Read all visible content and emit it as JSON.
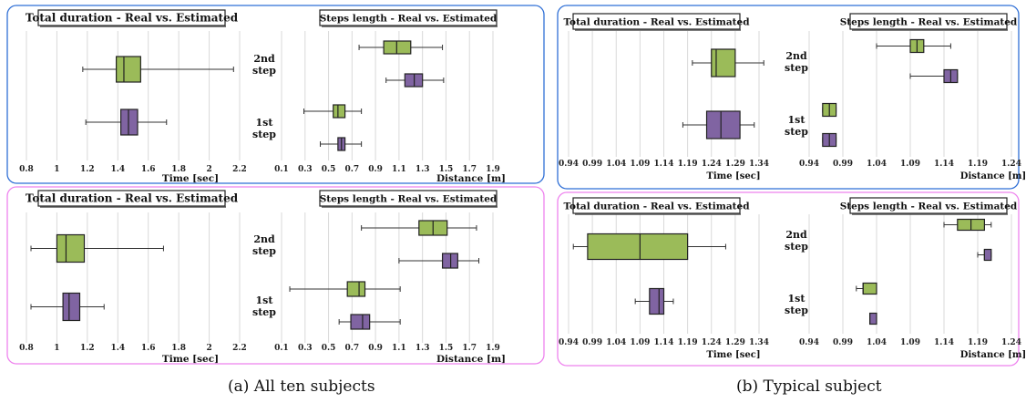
{
  "figure": {
    "captions": [
      "(a) All ten subjects",
      "(b) Typical subject"
    ]
  },
  "colors": {
    "real": "#9bbb59",
    "estimated": "#8064a2",
    "frame_top": "#2f6fd6",
    "frame_bottom": "#ee82ee",
    "grid": "#d9d9d9"
  },
  "chart_data": [
    {
      "type": "boxplot",
      "figure_group": "(a) All ten subjects",
      "frame": "top",
      "title": "Total duration - Real vs. Estimated",
      "xlabel": "Time [sec]",
      "x_ticks": [
        "0.8",
        "1",
        "1.2",
        "1.4",
        "1.6",
        "1.8",
        "2",
        "2.2"
      ],
      "xlim": [
        0.8,
        2.2
      ],
      "groups": [
        {
          "label": "",
          "boxes": [
            {
              "series": "real",
              "min": 1.17,
              "q1": 1.39,
              "median": 1.44,
              "q3": 1.55,
              "max": 2.16
            },
            {
              "series": "estimated",
              "min": 1.19,
              "q1": 1.42,
              "median": 1.47,
              "q3": 1.53,
              "max": 1.72
            }
          ]
        }
      ]
    },
    {
      "type": "boxplot",
      "figure_group": "(a) All ten subjects",
      "frame": "top",
      "title": "Steps length - Real vs. Estimated",
      "xlabel": "Distance [m]",
      "x_ticks": [
        "0.1",
        "0.3",
        "0.5",
        "0.7",
        "0.9",
        "1.1",
        "1.3",
        "1.5",
        "1.7",
        "1.9"
      ],
      "xlim": [
        0.1,
        1.9
      ],
      "groups": [
        {
          "label": "2nd step",
          "boxes": [
            {
              "series": "real",
              "min": 0.76,
              "q1": 0.97,
              "median": 1.08,
              "q3": 1.2,
              "max": 1.47
            },
            {
              "series": "estimated",
              "min": 0.99,
              "q1": 1.15,
              "median": 1.23,
              "q3": 1.3,
              "max": 1.48
            }
          ]
        },
        {
          "label": "1st step",
          "boxes": [
            {
              "series": "real",
              "min": 0.29,
              "q1": 0.54,
              "median": 0.58,
              "q3": 0.64,
              "max": 0.78
            },
            {
              "series": "estimated",
              "min": 0.43,
              "q1": 0.58,
              "median": 0.61,
              "q3": 0.64,
              "max": 0.78
            }
          ]
        }
      ]
    },
    {
      "type": "boxplot",
      "figure_group": "(a) All ten subjects",
      "frame": "bottom",
      "title": "Total duration - Real vs. Estimated",
      "xlabel": "Time [sec]",
      "x_ticks": [
        "0.8",
        "1",
        "1.2",
        "1.4",
        "1.6",
        "1.8",
        "2",
        "2.2"
      ],
      "xlim": [
        0.8,
        2.2
      ],
      "groups": [
        {
          "label": "",
          "boxes": [
            {
              "series": "real",
              "min": 0.83,
              "q1": 1.0,
              "median": 1.06,
              "q3": 1.18,
              "max": 1.7
            },
            {
              "series": "estimated",
              "min": 0.83,
              "q1": 1.04,
              "median": 1.08,
              "q3": 1.15,
              "max": 1.31
            }
          ]
        }
      ]
    },
    {
      "type": "boxplot",
      "figure_group": "(a) All ten subjects",
      "frame": "bottom",
      "title": "Steps length - Real vs. Estimated",
      "xlabel": "Distance [m]",
      "x_ticks": [
        "0.1",
        "0.3",
        "0.5",
        "0.7",
        "0.9",
        "1.1",
        "1.3",
        "1.5",
        "1.7",
        "1.9"
      ],
      "xlim": [
        0.1,
        1.9
      ],
      "groups": [
        {
          "label": "2nd step",
          "boxes": [
            {
              "series": "real",
              "min": 0.78,
              "q1": 1.27,
              "median": 1.39,
              "q3": 1.51,
              "max": 1.76
            },
            {
              "series": "estimated",
              "min": 1.1,
              "q1": 1.47,
              "median": 1.54,
              "q3": 1.6,
              "max": 1.78
            }
          ]
        },
        {
          "label": "1st step",
          "boxes": [
            {
              "series": "real",
              "min": 0.17,
              "q1": 0.66,
              "median": 0.76,
              "q3": 0.81,
              "max": 1.11
            },
            {
              "series": "estimated",
              "min": 0.59,
              "q1": 0.69,
              "median": 0.79,
              "q3": 0.85,
              "max": 1.11
            }
          ]
        }
      ]
    },
    {
      "type": "boxplot",
      "figure_group": "(b) Typical subject",
      "frame": "top",
      "title": "Total duration - Real vs. Estimated",
      "xlabel": "Time [sec]",
      "x_ticks": [
        "0.94",
        "0.99",
        "1.04",
        "1.09",
        "1.14",
        "1.19",
        "1.24",
        "1.29",
        "1.34"
      ],
      "xlim": [
        0.94,
        1.34
      ],
      "groups": [
        {
          "label": "",
          "boxes": [
            {
              "series": "real",
              "min": 1.2,
              "q1": 1.24,
              "median": 1.25,
              "q3": 1.29,
              "max": 1.35
            },
            {
              "series": "estimated",
              "min": 1.18,
              "q1": 1.23,
              "median": 1.26,
              "q3": 1.3,
              "max": 1.33
            }
          ]
        }
      ]
    },
    {
      "type": "boxplot",
      "figure_group": "(b) Typical subject",
      "frame": "top",
      "title": "Steps length - Real vs. Estimated",
      "xlabel": "Distance [m]",
      "x_ticks": [
        "0.94",
        "0.99",
        "1.04",
        "1.09",
        "1.14",
        "1.19",
        "1.24"
      ],
      "xlim": [
        0.94,
        1.24
      ],
      "groups": [
        {
          "label": "2nd step",
          "boxes": [
            {
              "series": "real",
              "min": 1.04,
              "q1": 1.09,
              "median": 1.1,
              "q3": 1.11,
              "max": 1.15
            },
            {
              "series": "estimated",
              "min": 1.09,
              "q1": 1.14,
              "median": 1.15,
              "q3": 1.16,
              "max": 1.16
            }
          ]
        },
        {
          "label": "1st step",
          "boxes": [
            {
              "series": "real",
              "min": 0.96,
              "q1": 0.96,
              "median": 0.97,
              "q3": 0.98,
              "max": 0.98
            },
            {
              "series": "estimated",
              "min": 0.96,
              "q1": 0.96,
              "median": 0.97,
              "q3": 0.98,
              "max": 0.98
            }
          ]
        }
      ]
    },
    {
      "type": "boxplot",
      "figure_group": "(b) Typical subject",
      "frame": "bottom",
      "title": "Total duration - Real vs. Estimated",
      "xlabel": "Time [sec]",
      "x_ticks": [
        "0.94",
        "0.99",
        "1.04",
        "1.09",
        "1.14",
        "1.19",
        "1.24",
        "1.29",
        "1.34"
      ],
      "xlim": [
        0.94,
        1.34
      ],
      "groups": [
        {
          "label": "",
          "boxes": [
            {
              "series": "real",
              "min": 0.95,
              "q1": 0.98,
              "median": 1.09,
              "q3": 1.19,
              "max": 1.27
            },
            {
              "series": "estimated",
              "min": 1.08,
              "q1": 1.11,
              "median": 1.13,
              "q3": 1.14,
              "max": 1.16
            }
          ]
        }
      ]
    },
    {
      "type": "boxplot",
      "figure_group": "(b) Typical subject",
      "frame": "bottom",
      "title": "Steps length - Real vs. Estimated",
      "xlabel": "Distance [m]",
      "x_ticks": [
        "0.94",
        "0.99",
        "1.04",
        "1.09",
        "1.14",
        "1.19",
        "1.24"
      ],
      "xlim": [
        0.94,
        1.24
      ],
      "groups": [
        {
          "label": "2nd step",
          "boxes": [
            {
              "series": "real",
              "min": 1.14,
              "q1": 1.16,
              "median": 1.18,
              "q3": 1.2,
              "max": 1.21
            },
            {
              "series": "estimated",
              "min": 1.19,
              "q1": 1.2,
              "median": 1.2,
              "q3": 1.21,
              "max": 1.21
            }
          ]
        },
        {
          "label": "1st step",
          "boxes": [
            {
              "series": "real",
              "min": 1.01,
              "q1": 1.02,
              "median": 1.02,
              "q3": 1.04,
              "max": 1.04
            },
            {
              "series": "estimated",
              "min": 1.03,
              "q1": 1.03,
              "median": 1.03,
              "q3": 1.04,
              "max": 1.04
            }
          ]
        }
      ]
    }
  ]
}
